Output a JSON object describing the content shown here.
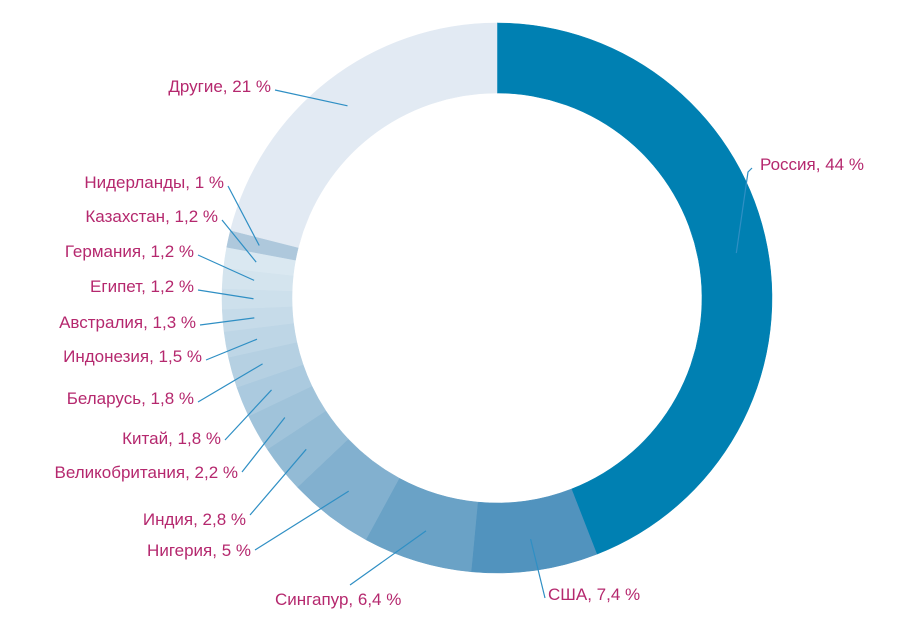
{
  "chart_data": {
    "type": "pie",
    "variant": "donut",
    "title": "",
    "label_color": "#b5286e",
    "leader_color": "#2f8fc4",
    "slices": [
      {
        "label": "Россия, 44 %",
        "value": 44,
        "color": "#0080b2"
      },
      {
        "label": "США, 7,4 %",
        "value": 7.4,
        "color": "#5193be"
      },
      {
        "label": "Сингапур, 6,4 %",
        "value": 6.4,
        "color": "#6aa2c6"
      },
      {
        "label": "Нигерия, 5 %",
        "value": 5,
        "color": "#82b0cf"
      },
      {
        "label": "Индия, 2,8 %",
        "value": 2.8,
        "color": "#93bbd5"
      },
      {
        "label": "Великобритания, 2,2 %",
        "value": 2.2,
        "color": "#a0c3da"
      },
      {
        "label": "Китай, 1,8 %",
        "value": 1.8,
        "color": "#abcadf"
      },
      {
        "label": "Беларусь, 1,8 %",
        "value": 1.8,
        "color": "#b5d0e2"
      },
      {
        "label": "Индонезия, 1,5 %",
        "value": 1.5,
        "color": "#bed6e6"
      },
      {
        "label": "Австралия, 1,3 %",
        "value": 1.3,
        "color": "#c6dbe9"
      },
      {
        "label": "Египет, 1,2 %",
        "value": 1.2,
        "color": "#cde0ec"
      },
      {
        "label": "Германия, 1,2 %",
        "value": 1.2,
        "color": "#d4e4ee"
      },
      {
        "label": "Казахстан, 1,2 %",
        "value": 1.2,
        "color": "#dae8f1"
      },
      {
        "label": "Нидерланды, 1 %",
        "value": 1,
        "color": "#aec8dc"
      },
      {
        "label": "Другие, 21 %",
        "value": 21,
        "color": "#e2eaf3"
      }
    ]
  }
}
